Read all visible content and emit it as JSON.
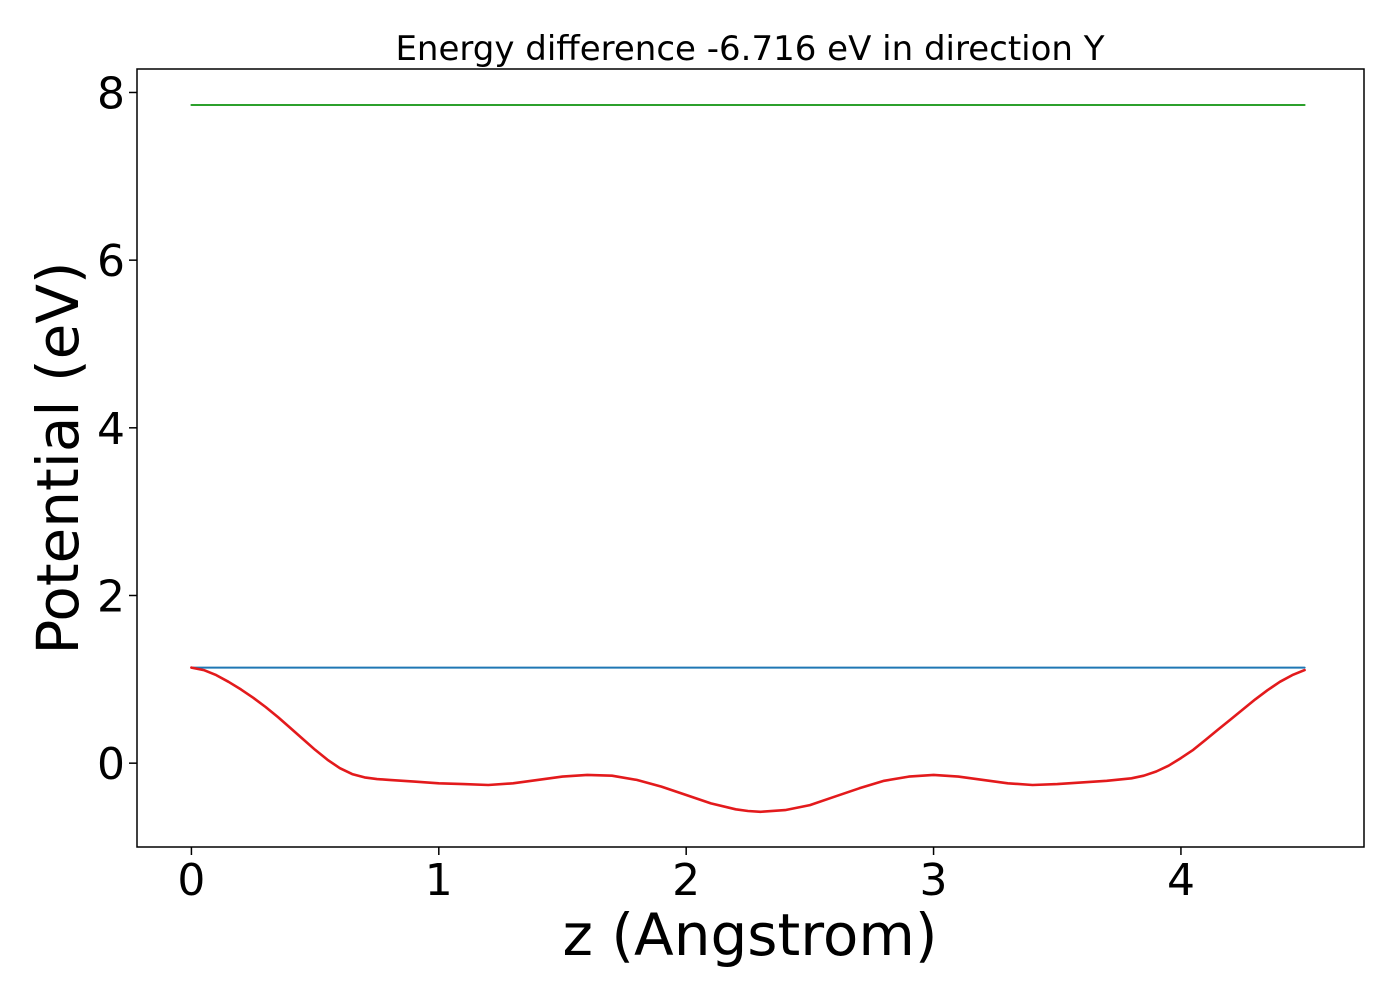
{
  "chart_data": {
    "type": "line",
    "title": "Energy difference -6.716 eV in direction Y",
    "xlabel": "z (Angstrom)",
    "ylabel": "Potential (eV)",
    "xlim": [
      -0.22,
      4.74
    ],
    "ylim": [
      -1.0,
      8.28
    ],
    "xticks": [
      0,
      1,
      2,
      3,
      4
    ],
    "yticks": [
      0,
      2,
      4,
      6,
      8
    ],
    "grid": false,
    "colors": {
      "green": "#2ca02c",
      "blue": "#1f77b4",
      "red": "#e31a1c"
    },
    "series": [
      {
        "color": "green",
        "x": [
          0,
          4.5
        ],
        "y": [
          7.85,
          7.85
        ]
      },
      {
        "color": "blue",
        "x": [
          0,
          4.5
        ],
        "y": [
          1.14,
          1.14
        ]
      },
      {
        "color": "red",
        "x": [
          0,
          0.05,
          0.1,
          0.15,
          0.2,
          0.25,
          0.3,
          0.35,
          0.4,
          0.45,
          0.5,
          0.55,
          0.6,
          0.65,
          0.7,
          0.75,
          0.8,
          0.9,
          1.0,
          1.1,
          1.2,
          1.3,
          1.4,
          1.5,
          1.6,
          1.7,
          1.8,
          1.9,
          2.0,
          2.1,
          2.2,
          2.25,
          2.3,
          2.4,
          2.5,
          2.6,
          2.7,
          2.8,
          2.9,
          3.0,
          3.1,
          3.2,
          3.3,
          3.4,
          3.5,
          3.6,
          3.7,
          3.8,
          3.85,
          3.9,
          3.95,
          4.0,
          4.05,
          4.1,
          4.15,
          4.2,
          4.25,
          4.3,
          4.35,
          4.4,
          4.45,
          4.5
        ],
        "y": [
          1.14,
          1.11,
          1.05,
          0.97,
          0.88,
          0.78,
          0.67,
          0.55,
          0.42,
          0.29,
          0.16,
          0.04,
          -0.06,
          -0.13,
          -0.17,
          -0.19,
          -0.2,
          -0.22,
          -0.24,
          -0.25,
          -0.26,
          -0.24,
          -0.2,
          -0.16,
          -0.14,
          -0.15,
          -0.2,
          -0.28,
          -0.38,
          -0.48,
          -0.55,
          -0.57,
          -0.58,
          -0.56,
          -0.5,
          -0.4,
          -0.3,
          -0.21,
          -0.16,
          -0.14,
          -0.16,
          -0.2,
          -0.24,
          -0.26,
          -0.25,
          -0.23,
          -0.21,
          -0.18,
          -0.15,
          -0.1,
          -0.03,
          0.06,
          0.16,
          0.28,
          0.4,
          0.52,
          0.64,
          0.76,
          0.87,
          0.97,
          1.05,
          1.11
        ]
      }
    ]
  }
}
